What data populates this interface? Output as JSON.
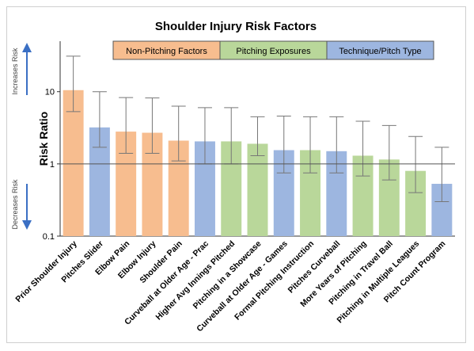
{
  "chart_data": {
    "type": "bar",
    "title": "Shoulder Injury Risk Factors",
    "ylabel": "Risk Ratio",
    "yscale": "log",
    "ylim": [
      0.1,
      50
    ],
    "yticks": [
      "0.1",
      "1",
      "10"
    ],
    "reference_line": 1,
    "side_labels": {
      "top": "Increases Risk",
      "bottom": "Decreases Risk"
    },
    "legend": [
      {
        "label": "Non-Pitching Factors",
        "color": "#f7bd8f"
      },
      {
        "label": "Pitching Exposures",
        "color": "#b9d79a"
      },
      {
        "label": "Technique/Pitch Type",
        "color": "#9db6e0"
      }
    ],
    "bars": [
      {
        "label": "Prior Shoulder Injury",
        "value": 10.5,
        "lo": 5.3,
        "hi": 31,
        "group": 0
      },
      {
        "label": "Pitches Slider",
        "value": 3.2,
        "lo": 1.7,
        "hi": 10,
        "group": 2
      },
      {
        "label": "Elbow Pain",
        "value": 2.8,
        "lo": 1.4,
        "hi": 8.3,
        "group": 0
      },
      {
        "label": "Elbow Injury",
        "value": 2.7,
        "lo": 1.4,
        "hi": 8.2,
        "group": 0
      },
      {
        "label": "Shoulder Pain",
        "value": 2.1,
        "lo": 1.1,
        "hi": 6.3,
        "group": 0
      },
      {
        "label": "Curveball at Older Age - Prac",
        "value": 2.05,
        "lo": 1.0,
        "hi": 6.0,
        "group": 2
      },
      {
        "label": "Higher Avg Innings Pitched",
        "value": 2.05,
        "lo": 1.0,
        "hi": 6.0,
        "group": 1
      },
      {
        "label": "Pitching in a Showcase",
        "value": 1.9,
        "lo": 1.3,
        "hi": 4.5,
        "group": 1
      },
      {
        "label": "Curveball at Older Age - Games",
        "value": 1.55,
        "lo": 0.75,
        "hi": 4.6,
        "group": 2
      },
      {
        "label": "Formal Pitching Instruction",
        "value": 1.55,
        "lo": 0.75,
        "hi": 4.5,
        "group": 1
      },
      {
        "label": "Pitches Curveball",
        "value": 1.5,
        "lo": 0.75,
        "hi": 4.5,
        "group": 2
      },
      {
        "label": "More Years of Pitching",
        "value": 1.3,
        "lo": 0.68,
        "hi": 3.9,
        "group": 1
      },
      {
        "label": "Pitching in Travel Ball",
        "value": 1.15,
        "lo": 0.6,
        "hi": 3.4,
        "group": 1
      },
      {
        "label": "Pitching in Multiple Leagues",
        "value": 0.8,
        "lo": 0.4,
        "hi": 2.4,
        "group": 1
      },
      {
        "label": "Pitch Count Program",
        "value": 0.53,
        "lo": 0.3,
        "hi": 1.7,
        "group": 2
      }
    ]
  }
}
